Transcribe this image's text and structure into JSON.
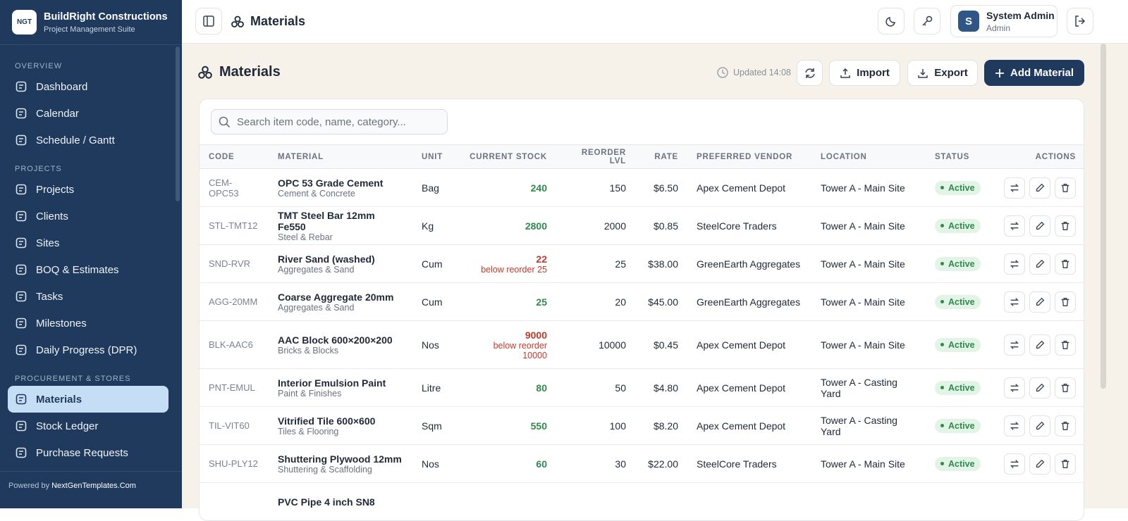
{
  "sidebar": {
    "logo": "NGT",
    "brand": "BuildRight Constructions",
    "tagline": "Project Management Suite",
    "sections": [
      {
        "title": "OVERVIEW",
        "items": [
          "Dashboard",
          "Calendar",
          "Schedule / Gantt"
        ]
      },
      {
        "title": "PROJECTS",
        "items": [
          "Projects",
          "Clients",
          "Sites",
          "BOQ & Estimates",
          "Tasks",
          "Milestones",
          "Daily Progress (DPR)"
        ]
      },
      {
        "title": "PROCUREMENT & STORES",
        "items": [
          "Materials",
          "Stock Ledger",
          "Purchase Requests"
        ]
      }
    ],
    "active_item": [
      2,
      0
    ],
    "footer_prefix": "Powered by",
    "footer_link": "NextGenTemplates.Com"
  },
  "topbar": {
    "title": "Materials",
    "user_initial": "S",
    "user_name": "System Admin",
    "user_role": "Admin"
  },
  "page": {
    "title": "Materials",
    "updated": "Updated 14:08",
    "import": "Import",
    "export": "Export",
    "add": "Add Material",
    "search_placeholder": "Search item code, name, category..."
  },
  "table": {
    "columns": [
      "CODE",
      "MATERIAL",
      "UNIT",
      "CURRENT STOCK",
      "REORDER LVL",
      "RATE",
      "PREFERRED VENDOR",
      "LOCATION",
      "STATUS",
      "ACTIONS"
    ],
    "rows": [
      {
        "code": "CEM-OPC53",
        "name": "OPC 53 Grade Cement",
        "category": "Cement & Concrete",
        "unit": "Bag",
        "stock": "240",
        "reorder": "150",
        "rate": "$6.50",
        "vendor": "Apex Cement Depot",
        "location": "Tower A - Main Site",
        "status": "Active"
      },
      {
        "code": "STL-TMT12",
        "name": "TMT Steel Bar 12mm Fe550",
        "category": "Steel & Rebar",
        "unit": "Kg",
        "stock": "2800",
        "reorder": "2000",
        "rate": "$0.85",
        "vendor": "SteelCore Traders",
        "location": "Tower A - Main Site",
        "status": "Active"
      },
      {
        "code": "SND-RVR",
        "name": "River Sand (washed)",
        "category": "Aggregates & Sand",
        "unit": "Cum",
        "stock": "22",
        "low_note": "below reorder 25",
        "reorder": "25",
        "rate": "$38.00",
        "vendor": "GreenEarth Aggregates",
        "location": "Tower A - Main Site",
        "status": "Active"
      },
      {
        "code": "AGG-20MM",
        "name": "Coarse Aggregate 20mm",
        "category": "Aggregates & Sand",
        "unit": "Cum",
        "stock": "25",
        "reorder": "20",
        "rate": "$45.00",
        "vendor": "GreenEarth Aggregates",
        "location": "Tower A - Main Site",
        "status": "Active"
      },
      {
        "code": "BLK-AAC6",
        "name": "AAC Block 600×200×200",
        "category": "Bricks & Blocks",
        "unit": "Nos",
        "stock": "9000",
        "low_note": "below reorder 10000",
        "reorder": "10000",
        "rate": "$0.45",
        "vendor": "Apex Cement Depot",
        "location": "Tower A - Main Site",
        "status": "Active"
      },
      {
        "code": "PNT-EMUL",
        "name": "Interior Emulsion Paint",
        "category": "Paint & Finishes",
        "unit": "Litre",
        "stock": "80",
        "reorder": "50",
        "rate": "$4.80",
        "vendor": "Apex Cement Depot",
        "location": "Tower A - Casting Yard",
        "status": "Active"
      },
      {
        "code": "TIL-VIT60",
        "name": "Vitrified Tile 600×600",
        "category": "Tiles & Flooring",
        "unit": "Sqm",
        "stock": "550",
        "reorder": "100",
        "rate": "$8.20",
        "vendor": "Apex Cement Depot",
        "location": "Tower A - Casting Yard",
        "status": "Active"
      },
      {
        "code": "SHU-PLY12",
        "name": "Shuttering Plywood 12mm",
        "category": "Shuttering & Scaffolding",
        "unit": "Nos",
        "stock": "60",
        "reorder": "30",
        "rate": "$22.00",
        "vendor": "SteelCore Traders",
        "location": "Tower A - Main Site",
        "status": "Active"
      },
      {
        "name": "PVC Pipe 4 inch SN8"
      }
    ]
  }
}
